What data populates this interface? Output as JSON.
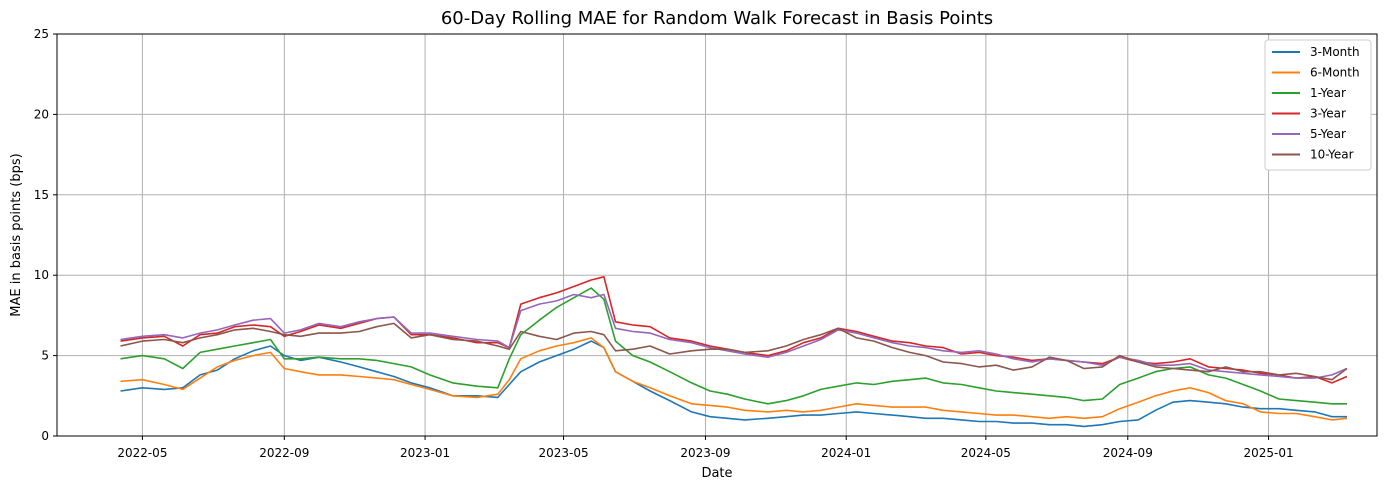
{
  "chart_data": {
    "type": "line",
    "title": "60-Day Rolling MAE for Random Walk Forecast in Basis Points",
    "xlabel": "Date",
    "ylabel": "MAE in basis points (bps)",
    "ylim": [
      0,
      25
    ],
    "xlim": [
      "2022-02-16",
      "2025-04-05"
    ],
    "y_ticks": [
      0,
      5,
      10,
      15,
      20,
      25
    ],
    "x_ticks": [
      "2022-05",
      "2022-09",
      "2023-01",
      "2023-05",
      "2023-09",
      "2024-01",
      "2024-05",
      "2024-09",
      "2025-01"
    ],
    "grid": true,
    "legend_position": "top-right",
    "x": [
      "2022-04-12",
      "2022-05-01",
      "2022-05-20",
      "2022-06-05",
      "2022-06-20",
      "2022-07-05",
      "2022-07-20",
      "2022-08-05",
      "2022-08-20",
      "2022-09-01",
      "2022-09-15",
      "2022-10-01",
      "2022-10-20",
      "2022-11-05",
      "2022-11-20",
      "2022-12-05",
      "2022-12-20",
      "2023-01-05",
      "2023-01-25",
      "2023-02-15",
      "2023-03-05",
      "2023-03-15",
      "2023-03-25",
      "2023-04-10",
      "2023-04-25",
      "2023-05-10",
      "2023-05-25",
      "2023-06-05",
      "2023-06-15",
      "2023-06-30",
      "2023-07-15",
      "2023-08-01",
      "2023-08-20",
      "2023-09-05",
      "2023-09-20",
      "2023-10-05",
      "2023-10-25",
      "2023-11-10",
      "2023-11-25",
      "2023-12-10",
      "2023-12-25",
      "2024-01-10",
      "2024-01-25",
      "2024-02-10",
      "2024-02-25",
      "2024-03-10",
      "2024-03-25",
      "2024-04-10",
      "2024-04-25",
      "2024-05-10",
      "2024-05-25",
      "2024-06-10",
      "2024-06-25",
      "2024-07-10",
      "2024-07-25",
      "2024-08-10",
      "2024-08-25",
      "2024-09-10",
      "2024-09-25",
      "2024-10-10",
      "2024-10-25",
      "2024-11-10",
      "2024-11-25",
      "2024-12-10",
      "2024-12-25",
      "2025-01-10",
      "2025-01-25",
      "2025-02-10",
      "2025-02-25",
      "2025-03-10"
    ],
    "series": [
      {
        "name": "3-Month",
        "color": "#1f77b4",
        "values": [
          2.8,
          3.0,
          2.9,
          3.0,
          3.8,
          4.1,
          4.8,
          5.3,
          5.6,
          5.0,
          4.7,
          4.9,
          4.6,
          4.3,
          4.0,
          3.7,
          3.3,
          3.0,
          2.5,
          2.5,
          2.4,
          3.2,
          4.0,
          4.6,
          5.0,
          5.4,
          5.9,
          5.5,
          4.0,
          3.4,
          2.8,
          2.2,
          1.5,
          1.2,
          1.1,
          1.0,
          1.1,
          1.2,
          1.3,
          1.3,
          1.4,
          1.5,
          1.4,
          1.3,
          1.2,
          1.1,
          1.1,
          1.0,
          0.9,
          0.9,
          0.8,
          0.8,
          0.7,
          0.7,
          0.6,
          0.7,
          0.9,
          1.0,
          1.6,
          2.1,
          2.2,
          2.1,
          2.0,
          1.8,
          1.7,
          1.7,
          1.6,
          1.5,
          1.2,
          1.2
        ]
      },
      {
        "name": "6-Month",
        "color": "#ff7f0e",
        "values": [
          3.4,
          3.5,
          3.2,
          2.9,
          3.6,
          4.3,
          4.7,
          5.0,
          5.2,
          4.2,
          4.0,
          3.8,
          3.8,
          3.7,
          3.6,
          3.5,
          3.2,
          2.9,
          2.5,
          2.4,
          2.6,
          3.5,
          4.8,
          5.3,
          5.6,
          5.8,
          6.1,
          5.5,
          4.0,
          3.4,
          3.0,
          2.5,
          2.0,
          1.9,
          1.8,
          1.6,
          1.5,
          1.6,
          1.5,
          1.6,
          1.8,
          2.0,
          1.9,
          1.8,
          1.8,
          1.8,
          1.6,
          1.5,
          1.4,
          1.3,
          1.3,
          1.2,
          1.1,
          1.2,
          1.1,
          1.2,
          1.7,
          2.1,
          2.5,
          2.8,
          3.0,
          2.7,
          2.2,
          2.0,
          1.5,
          1.4,
          1.4,
          1.2,
          1.0,
          1.1
        ]
      },
      {
        "name": "1-Year",
        "color": "#2ca02c",
        "values": [
          4.8,
          5.0,
          4.8,
          4.2,
          5.2,
          5.4,
          5.6,
          5.8,
          6.0,
          4.8,
          4.8,
          4.9,
          4.8,
          4.8,
          4.7,
          4.5,
          4.3,
          3.8,
          3.3,
          3.1,
          3.0,
          4.8,
          6.3,
          7.2,
          8.0,
          8.6,
          9.2,
          8.5,
          5.9,
          5.0,
          4.6,
          4.0,
          3.3,
          2.8,
          2.6,
          2.3,
          2.0,
          2.2,
          2.5,
          2.9,
          3.1,
          3.3,
          3.2,
          3.4,
          3.5,
          3.6,
          3.3,
          3.2,
          3.0,
          2.8,
          2.7,
          2.6,
          2.5,
          2.4,
          2.2,
          2.3,
          3.2,
          3.6,
          4.0,
          4.2,
          4.3,
          3.8,
          3.6,
          3.2,
          2.8,
          2.3,
          2.2,
          2.1,
          2.0,
          2.0
        ]
      },
      {
        "name": "3-Year",
        "color": "#d62728",
        "values": [
          5.9,
          6.1,
          6.2,
          5.6,
          6.3,
          6.4,
          6.8,
          6.9,
          6.8,
          6.2,
          6.5,
          6.9,
          6.7,
          7.0,
          7.3,
          7.4,
          6.3,
          6.3,
          6.1,
          5.8,
          5.8,
          5.5,
          8.2,
          8.6,
          8.9,
          9.3,
          9.7,
          9.9,
          7.1,
          6.9,
          6.8,
          6.1,
          5.9,
          5.6,
          5.4,
          5.2,
          5.0,
          5.3,
          5.8,
          6.1,
          6.7,
          6.5,
          6.2,
          5.9,
          5.8,
          5.6,
          5.5,
          5.1,
          5.2,
          5.0,
          4.9,
          4.7,
          4.8,
          4.7,
          4.6,
          4.5,
          4.9,
          4.6,
          4.5,
          4.6,
          4.8,
          4.3,
          4.2,
          4.1,
          3.9,
          3.8,
          3.6,
          3.7,
          3.3,
          3.7
        ]
      },
      {
        "name": "5-Year",
        "color": "#9467bd",
        "values": [
          6.0,
          6.2,
          6.3,
          6.1,
          6.4,
          6.6,
          6.9,
          7.2,
          7.3,
          6.4,
          6.6,
          7.0,
          6.8,
          7.1,
          7.3,
          7.4,
          6.4,
          6.4,
          6.2,
          6.0,
          5.9,
          5.5,
          7.8,
          8.2,
          8.4,
          8.8,
          8.6,
          8.8,
          6.7,
          6.5,
          6.4,
          6.0,
          5.8,
          5.5,
          5.3,
          5.1,
          4.9,
          5.2,
          5.6,
          6.0,
          6.6,
          6.4,
          6.1,
          5.8,
          5.6,
          5.5,
          5.3,
          5.2,
          5.3,
          5.1,
          4.8,
          4.6,
          4.8,
          4.7,
          4.6,
          4.4,
          4.9,
          4.7,
          4.4,
          4.4,
          4.5,
          4.1,
          4.0,
          3.9,
          3.8,
          3.7,
          3.6,
          3.6,
          3.8,
          4.2
        ]
      },
      {
        "name": "10-Year",
        "color": "#8c564b",
        "values": [
          5.6,
          5.9,
          6.0,
          5.8,
          6.1,
          6.3,
          6.6,
          6.7,
          6.5,
          6.3,
          6.2,
          6.4,
          6.4,
          6.5,
          6.8,
          7.0,
          6.1,
          6.3,
          6.0,
          5.9,
          5.6,
          5.4,
          6.5,
          6.2,
          6.0,
          6.4,
          6.5,
          6.3,
          5.3,
          5.4,
          5.6,
          5.1,
          5.3,
          5.4,
          5.4,
          5.2,
          5.3,
          5.6,
          6.0,
          6.3,
          6.7,
          6.1,
          5.9,
          5.5,
          5.2,
          5.0,
          4.6,
          4.5,
          4.3,
          4.4,
          4.1,
          4.3,
          4.9,
          4.7,
          4.2,
          4.3,
          5.0,
          4.6,
          4.3,
          4.2,
          4.1,
          4.0,
          4.3,
          4.0,
          4.0,
          3.8,
          3.9,
          3.7,
          3.5,
          4.2
        ]
      }
    ]
  }
}
